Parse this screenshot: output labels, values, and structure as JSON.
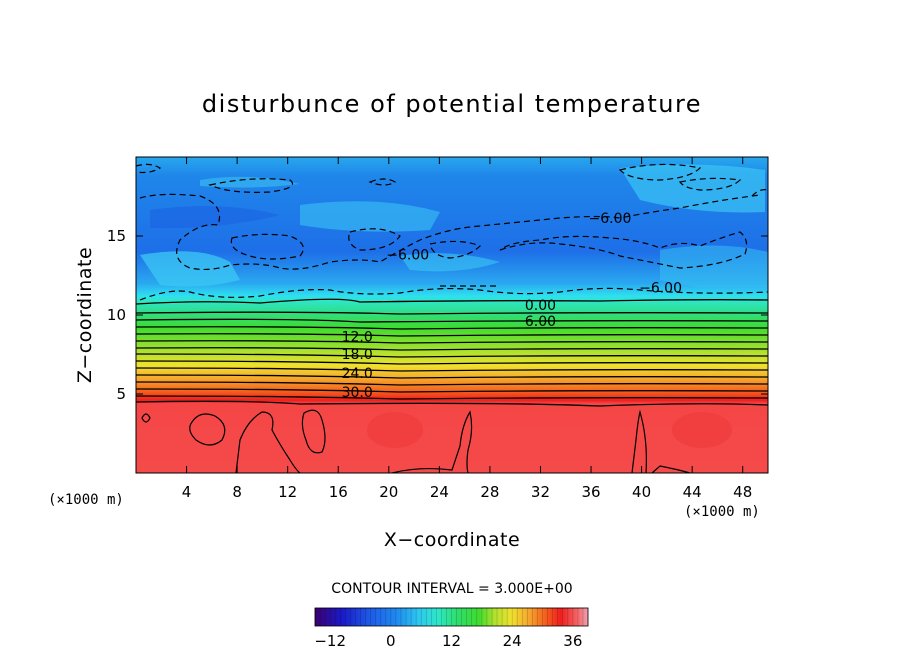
{
  "chart_data": {
    "type": "contour",
    "title": "disturbunce of potential temperature",
    "xlabel": "X−coordinate",
    "ylabel": "Z−coordinate",
    "x_unit_left": "(×1000 m)",
    "x_unit_right": "(×1000 m)",
    "xlim": [
      0,
      50
    ],
    "ylim": [
      0,
      20
    ],
    "x_ticks": [
      4,
      8,
      12,
      16,
      20,
      24,
      28,
      32,
      36,
      40,
      44,
      48
    ],
    "x_tick_labels": [
      "4",
      "8",
      "12",
      "16",
      "20",
      "24",
      "28",
      "32",
      "36",
      "40",
      "44",
      "48"
    ],
    "y_ticks": [
      5,
      10,
      15
    ],
    "y_tick_labels": [
      "5",
      "10",
      "15"
    ],
    "contour_interval_text": "CONTOUR INTERVAL = 3.000E+00",
    "contour_labels": [
      {
        "text": "−6.00",
        "x": 37.5,
        "z": 16.0
      },
      {
        "text": "−6.00",
        "x": 21.5,
        "z": 13.7
      },
      {
        "text": "−6.00",
        "x": 41.5,
        "z": 11.6
      },
      {
        "text": "0.00",
        "x": 32.0,
        "z": 10.5
      },
      {
        "text": "6.00",
        "x": 32.0,
        "z": 9.5
      },
      {
        "text": "12.0",
        "x": 17.5,
        "z": 8.5
      },
      {
        "text": "18.0",
        "x": 17.5,
        "z": 7.4
      },
      {
        "text": "24.0",
        "x": 17.5,
        "z": 6.2
      },
      {
        "text": "30.0",
        "x": 17.5,
        "z": 5.0
      }
    ],
    "field_description": "Potential temperature disturbance: about 33–36 below z≈4.5, strong vertical gradient from 33 down to 0 between z≈4.5 and z≈11, and values around −6 to −9 above z≈11.",
    "colorbar": {
      "min": -15,
      "max": 39,
      "ticks": [
        -12,
        0,
        12,
        24,
        36
      ],
      "tick_labels": [
        "−12",
        "0",
        "12",
        "24",
        "36"
      ],
      "colors": [
        "#3c0070",
        "#1a1ac8",
        "#1e5ae6",
        "#1f8af0",
        "#2ec8f0",
        "#2ee6c8",
        "#2ede6e",
        "#3edc2e",
        "#b4e12e",
        "#f0e12e",
        "#f5aa2e",
        "#f5641e",
        "#f01e1e",
        "#f56464",
        "#f0a0b4"
      ]
    }
  }
}
